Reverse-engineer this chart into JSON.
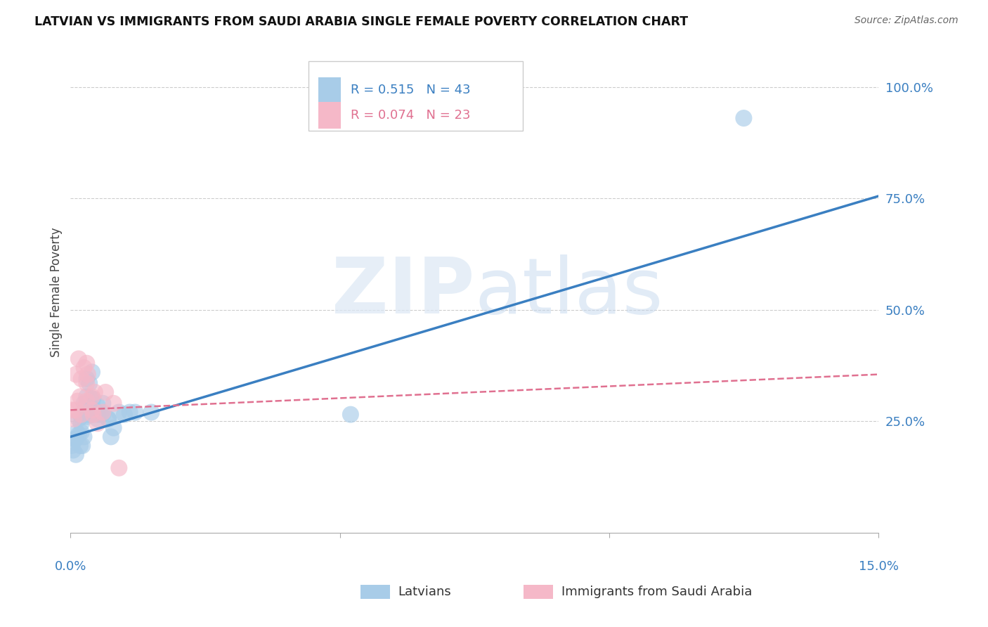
{
  "title": "LATVIAN VS IMMIGRANTS FROM SAUDI ARABIA SINGLE FEMALE POVERTY CORRELATION CHART",
  "source": "Source: ZipAtlas.com",
  "ylabel": "Single Female Poverty",
  "latvian_R": 0.515,
  "latvian_N": 43,
  "saudi_R": 0.074,
  "saudi_N": 23,
  "latvian_color": "#a8cce8",
  "latvian_line_color": "#3a7fc1",
  "saudi_color": "#f5b8c8",
  "saudi_line_color": "#e07090",
  "background_color": "#ffffff",
  "grid_color": "#cccccc",
  "xlim": [
    0.0,
    0.15
  ],
  "ylim": [
    0.0,
    1.08
  ],
  "ytick_positions": [
    0.25,
    0.5,
    0.75,
    1.0
  ],
  "ytick_labels": [
    "25.0%",
    "50.0%",
    "75.0%",
    "100.0%"
  ],
  "xtick_positions": [
    0.0,
    0.05,
    0.1,
    0.15
  ],
  "xtick_labels_show": [
    true,
    false,
    false,
    true
  ],
  "xlabel_labels": [
    "0.0%",
    "15.0%"
  ],
  "latvian_trend": [
    0.0,
    0.15,
    0.215,
    0.755
  ],
  "saudi_trend": [
    0.0,
    0.15,
    0.275,
    0.355
  ],
  "latvian_points_x": [
    0.0002,
    0.0005,
    0.0008,
    0.001,
    0.001,
    0.0012,
    0.0015,
    0.0015,
    0.0018,
    0.002,
    0.002,
    0.002,
    0.0022,
    0.0025,
    0.0025,
    0.003,
    0.003,
    0.003,
    0.003,
    0.0032,
    0.0035,
    0.004,
    0.004,
    0.004,
    0.0042,
    0.0045,
    0.005,
    0.005,
    0.005,
    0.0055,
    0.006,
    0.006,
    0.007,
    0.007,
    0.0075,
    0.008,
    0.009,
    0.01,
    0.011,
    0.012,
    0.015,
    0.052,
    0.125
  ],
  "latvian_points_y": [
    0.195,
    0.185,
    0.21,
    0.21,
    0.175,
    0.225,
    0.22,
    0.255,
    0.195,
    0.225,
    0.245,
    0.26,
    0.195,
    0.215,
    0.29,
    0.26,
    0.285,
    0.305,
    0.345,
    0.265,
    0.335,
    0.3,
    0.265,
    0.36,
    0.3,
    0.275,
    0.265,
    0.285,
    0.255,
    0.265,
    0.265,
    0.29,
    0.255,
    0.255,
    0.215,
    0.235,
    0.27,
    0.265,
    0.27,
    0.27,
    0.27,
    0.265,
    0.93
  ],
  "saudi_points_x": [
    0.0003,
    0.0006,
    0.001,
    0.001,
    0.0013,
    0.0015,
    0.0018,
    0.002,
    0.002,
    0.0025,
    0.003,
    0.003,
    0.003,
    0.0032,
    0.004,
    0.004,
    0.0042,
    0.0045,
    0.005,
    0.006,
    0.0065,
    0.008,
    0.009
  ],
  "saudi_points_y": [
    0.275,
    0.255,
    0.355,
    0.275,
    0.295,
    0.39,
    0.305,
    0.345,
    0.265,
    0.37,
    0.38,
    0.335,
    0.295,
    0.355,
    0.305,
    0.275,
    0.265,
    0.315,
    0.245,
    0.27,
    0.315,
    0.29,
    0.145
  ]
}
